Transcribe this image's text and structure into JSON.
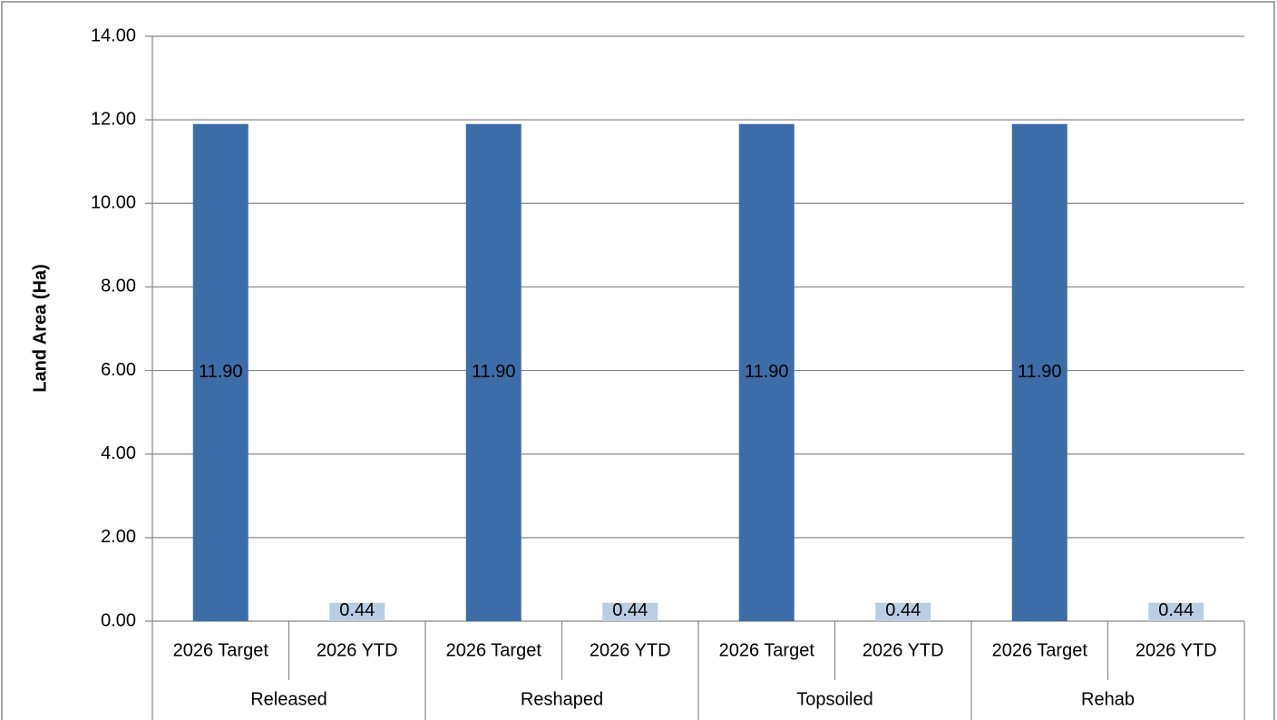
{
  "chart_data": {
    "type": "bar",
    "ylabel": "Land Area (Ha)",
    "groups": [
      "Released",
      "Reshaped",
      "Topsoiled",
      "Rehab"
    ],
    "categories": [
      "2026 Target",
      "2026 YTD",
      "2026 Target",
      "2026 YTD",
      "2026 Target",
      "2026 YTD",
      "2026 Target",
      "2026 YTD"
    ],
    "values": [
      11.9,
      0.44,
      11.9,
      0.44,
      11.9,
      0.44,
      11.9,
      0.44
    ],
    "value_labels": [
      "11.90",
      "0.44",
      "11.90",
      "0.44",
      "11.90",
      "0.44",
      "11.90",
      "0.44"
    ],
    "colors": [
      "#3d6da8",
      "#b9cde5",
      "#3d6da8",
      "#b9cde5",
      "#3d6da8",
      "#b9cde5",
      "#3d6da8",
      "#b9cde5"
    ],
    "ylim": [
      0,
      14
    ],
    "yticks": [
      {
        "value": 0,
        "label": "0.00"
      },
      {
        "value": 2,
        "label": "2.00"
      },
      {
        "value": 4,
        "label": "4.00"
      },
      {
        "value": 6,
        "label": "6.00"
      },
      {
        "value": 8,
        "label": "8.00"
      },
      {
        "value": 10,
        "label": "10.00"
      },
      {
        "value": 12,
        "label": "12.00"
      },
      {
        "value": 14,
        "label": "14.00"
      }
    ],
    "grid": true
  }
}
